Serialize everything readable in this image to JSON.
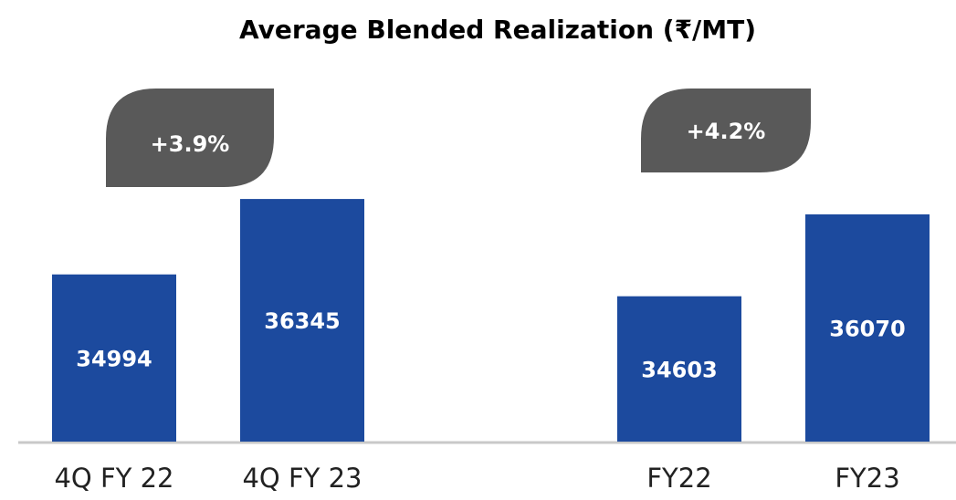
{
  "chart_data": {
    "type": "bar",
    "title": "Average Blended Realization (₹/MT)",
    "categories": [
      "4Q FY 22",
      "4Q FY 23",
      "FY22",
      "FY23"
    ],
    "values": [
      34994,
      36345,
      34603,
      36070
    ],
    "color": "#1c4a9e",
    "ylim": [
      32000,
      37000
    ],
    "annotations": [
      "+3.9%",
      "+4.2%"
    ]
  }
}
